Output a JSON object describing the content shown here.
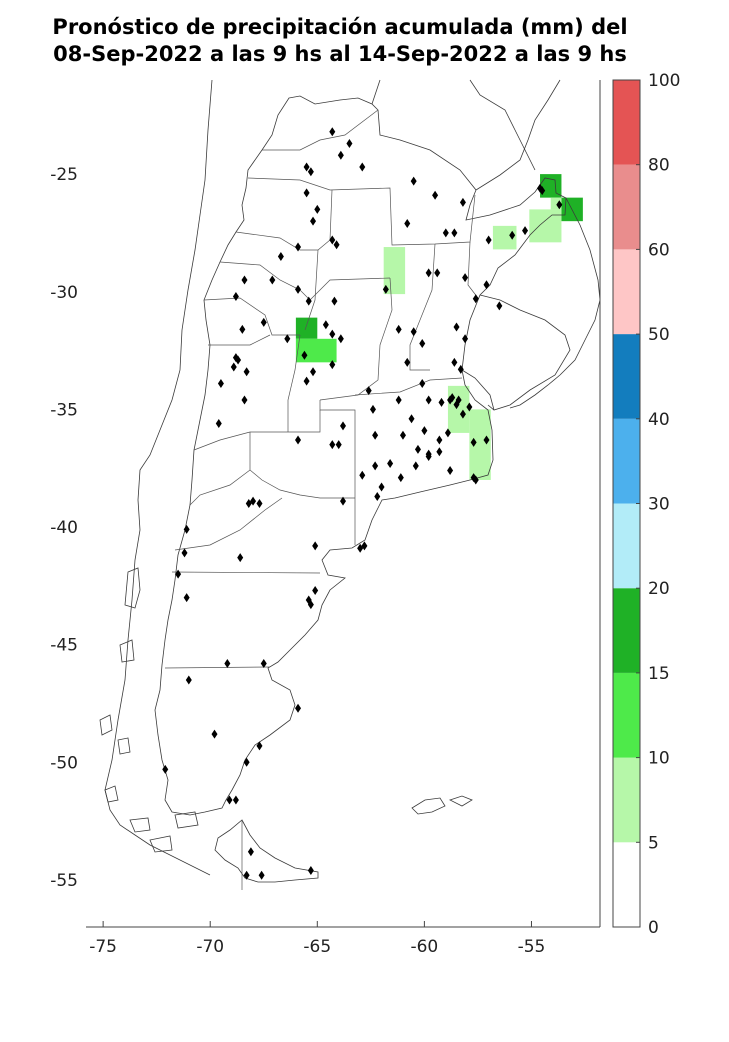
{
  "title": {
    "line1": "Pronóstico de precipitación acumulada (mm) del",
    "line2": "08-Sep-2022 a las 9 hs al 14-Sep-2022 a las 9 hs"
  },
  "map": {
    "lat_ticks": [
      "-25",
      "-30",
      "-35",
      "-40",
      "-45",
      "-50",
      "-55"
    ],
    "lon_ticks": [
      "-75",
      "-70",
      "-65",
      "-60",
      "-55"
    ],
    "lon_range": [
      -75.8,
      -51.8
    ],
    "lat_range": [
      -57.0,
      -21.0
    ],
    "stations": [
      [
        -64.3,
        -23.2
      ],
      [
        -63.5,
        -23.7
      ],
      [
        -63.9,
        -24.2
      ],
      [
        -65.5,
        -24.7
      ],
      [
        -65.3,
        -24.9
      ],
      [
        -62.9,
        -24.7
      ],
      [
        -65.5,
        -25.8
      ],
      [
        -65.0,
        -26.5
      ],
      [
        -65.2,
        -27.0
      ],
      [
        -64.3,
        -27.8
      ],
      [
        -60.5,
        -25.3
      ],
      [
        -59.5,
        -25.9
      ],
      [
        -58.2,
        -26.2
      ],
      [
        -60.8,
        -27.1
      ],
      [
        -65.9,
        -28.1
      ],
      [
        -66.7,
        -28.5
      ],
      [
        -68.4,
        -29.5
      ],
      [
        -67.1,
        -29.5
      ],
      [
        -64.1,
        -28.0
      ],
      [
        -59.0,
        -27.5
      ],
      [
        -58.6,
        -27.5
      ],
      [
        -57.0,
        -27.8
      ],
      [
        -55.9,
        -27.6
      ],
      [
        -54.6,
        -25.6
      ],
      [
        -54.5,
        -25.7
      ],
      [
        -53.7,
        -26.3
      ],
      [
        -55.3,
        -27.4
      ],
      [
        -61.8,
        -29.9
      ],
      [
        -59.8,
        -29.2
      ],
      [
        -59.4,
        -29.2
      ],
      [
        -58.1,
        -29.4
      ],
      [
        -57.1,
        -29.7
      ],
      [
        -57.6,
        -30.3
      ],
      [
        -56.5,
        -30.6
      ],
      [
        -64.2,
        -30.4
      ],
      [
        -65.9,
        -29.9
      ],
      [
        -65.4,
        -30.4
      ],
      [
        -68.8,
        -30.2
      ],
      [
        -67.5,
        -31.3
      ],
      [
        -68.5,
        -31.6
      ],
      [
        -66.4,
        -32.0
      ],
      [
        -64.6,
        -31.4
      ],
      [
        -64.3,
        -31.8
      ],
      [
        -63.9,
        -32.0
      ],
      [
        -65.6,
        -32.7
      ],
      [
        -61.2,
        -31.6
      ],
      [
        -60.5,
        -31.7
      ],
      [
        -60.1,
        -32.2
      ],
      [
        -60.8,
        -33.0
      ],
      [
        -58.5,
        -31.5
      ],
      [
        -58.1,
        -32.0
      ],
      [
        -58.6,
        -33.0
      ],
      [
        -58.3,
        -33.3
      ],
      [
        -64.3,
        -33.1
      ],
      [
        -62.6,
        -34.2
      ],
      [
        -65.2,
        -33.4
      ],
      [
        -65.5,
        -33.8
      ],
      [
        -68.8,
        -32.8
      ],
      [
        -68.7,
        -32.9
      ],
      [
        -68.9,
        -33.2
      ],
      [
        -69.5,
        -33.9
      ],
      [
        -68.3,
        -33.4
      ],
      [
        -68.4,
        -34.6
      ],
      [
        -69.6,
        -35.6
      ],
      [
        -63.8,
        -35.7
      ],
      [
        -64.3,
        -36.5
      ],
      [
        -64.0,
        -36.5
      ],
      [
        -62.4,
        -35.0
      ],
      [
        -61.2,
        -34.6
      ],
      [
        -60.1,
        -33.9
      ],
      [
        -59.8,
        -34.6
      ],
      [
        -59.2,
        -34.7
      ],
      [
        -58.8,
        -34.6
      ],
      [
        -58.7,
        -34.5
      ],
      [
        -58.4,
        -34.6
      ],
      [
        -58.5,
        -34.8
      ],
      [
        -57.9,
        -34.9
      ],
      [
        -58.2,
        -35.2
      ],
      [
        -60.6,
        -35.4
      ],
      [
        -60.0,
        -35.9
      ],
      [
        -59.3,
        -36.3
      ],
      [
        -58.9,
        -36.0
      ],
      [
        -57.1,
        -36.3
      ],
      [
        -57.7,
        -36.4
      ],
      [
        -62.3,
        -36.1
      ],
      [
        -61.0,
        -36.1
      ],
      [
        -60.3,
        -36.7
      ],
      [
        -59.8,
        -36.9
      ],
      [
        -59.3,
        -36.8
      ],
      [
        -58.8,
        -37.6
      ],
      [
        -57.6,
        -38.0
      ],
      [
        -57.7,
        -37.9
      ],
      [
        -61.6,
        -37.3
      ],
      [
        -62.3,
        -37.4
      ],
      [
        -61.1,
        -37.9
      ],
      [
        -60.4,
        -37.4
      ],
      [
        -59.8,
        -37.0
      ],
      [
        -62.9,
        -37.8
      ],
      [
        -62.0,
        -38.3
      ],
      [
        -62.2,
        -38.7
      ],
      [
        -63.8,
        -38.9
      ],
      [
        -65.9,
        -36.3
      ],
      [
        -68.0,
        -38.9
      ],
      [
        -67.7,
        -39.0
      ],
      [
        -68.2,
        -39.0
      ],
      [
        -62.8,
        -40.8
      ],
      [
        -63.0,
        -40.9
      ],
      [
        -71.1,
        -40.1
      ],
      [
        -71.2,
        -41.1
      ],
      [
        -68.6,
        -41.3
      ],
      [
        -71.5,
        -42.0
      ],
      [
        -71.1,
        -43.0
      ],
      [
        -65.1,
        -40.8
      ],
      [
        -65.1,
        -42.7
      ],
      [
        -65.3,
        -43.3
      ],
      [
        -65.4,
        -43.1
      ],
      [
        -69.2,
        -45.8
      ],
      [
        -67.5,
        -45.8
      ],
      [
        -71.0,
        -46.5
      ],
      [
        -65.9,
        -47.7
      ],
      [
        -69.8,
        -48.8
      ],
      [
        -67.7,
        -49.3
      ],
      [
        -72.1,
        -50.3
      ],
      [
        -68.3,
        -50.0
      ],
      [
        -69.1,
        -51.6
      ],
      [
        -68.8,
        -51.6
      ],
      [
        -68.1,
        -53.8
      ],
      [
        -68.3,
        -54.8
      ],
      [
        -67.6,
        -54.8
      ],
      [
        -65.3,
        -54.6
      ]
    ],
    "precip_cells": [
      {
        "lon": [
          -54.6,
          -53.6
        ],
        "lat": [
          -25.0,
          -26.0
        ],
        "bin": "15-20"
      },
      {
        "lon": [
          -53.6,
          -52.6
        ],
        "lat": [
          -26.0,
          -27.0
        ],
        "bin": "15-20"
      },
      {
        "lon": [
          -54.1,
          -53.6
        ],
        "lat": [
          -26.0,
          -26.5
        ],
        "bin": "5-10"
      },
      {
        "lon": [
          -55.1,
          -53.6
        ],
        "lat": [
          -26.5,
          -27.9
        ],
        "bin": "5-10"
      },
      {
        "lon": [
          -56.8,
          -55.7
        ],
        "lat": [
          -27.2,
          -28.2
        ],
        "bin": "5-10"
      },
      {
        "lon": [
          -61.9,
          -60.9
        ],
        "lat": [
          -28.1,
          -30.1
        ],
        "bin": "5-10"
      },
      {
        "lon": [
          -66.0,
          -65.0
        ],
        "lat": [
          -31.1,
          -32.0
        ],
        "bin": "15-20"
      },
      {
        "lon": [
          -66.0,
          -64.1
        ],
        "lat": [
          -32.0,
          -33.0
        ],
        "bin": "10-15"
      },
      {
        "lon": [
          -58.9,
          -57.9
        ],
        "lat": [
          -34.0,
          -36.0
        ],
        "bin": "5-10"
      },
      {
        "lon": [
          -57.9,
          -56.9
        ],
        "lat": [
          -35.0,
          -38.0
        ],
        "bin": "5-10"
      }
    ]
  },
  "colorbar": {
    "labels": [
      "0",
      "5",
      "10",
      "15",
      "20",
      "30",
      "40",
      "50",
      "60",
      "80",
      "100"
    ],
    "bins": [
      {
        "from": "0",
        "to": "5",
        "color": "#ffffff"
      },
      {
        "from": "5",
        "to": "10",
        "color": "#b6f7a9"
      },
      {
        "from": "10",
        "to": "15",
        "color": "#4eea4a"
      },
      {
        "from": "15",
        "to": "20",
        "color": "#1fb126"
      },
      {
        "from": "20",
        "to": "30",
        "color": "#b2ecf8"
      },
      {
        "from": "30",
        "to": "40",
        "color": "#4cb0ed"
      },
      {
        "from": "40",
        "to": "50",
        "color": "#137dbe"
      },
      {
        "from": "50",
        "to": "60",
        "color": "#fec6c6"
      },
      {
        "from": "60",
        "to": "80",
        "color": "#e98d8d"
      },
      {
        "from": "80",
        "to": "100",
        "color": "#e45454"
      }
    ]
  }
}
